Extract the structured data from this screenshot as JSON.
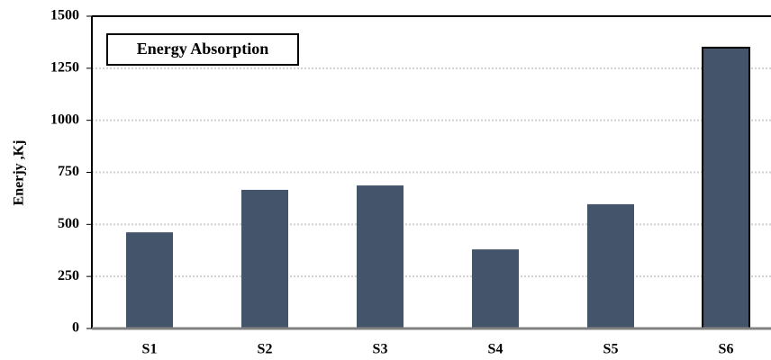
{
  "chart_data": {
    "type": "bar",
    "title": "Energy Absorption",
    "y_label": "Enerjy ,Kj",
    "categories": [
      "S1",
      "S2",
      "S3",
      "S4",
      "S5",
      "S6"
    ],
    "values": [
      462,
      666,
      687,
      380,
      597,
      1349
    ],
    "color": "#44546a",
    "ylim": [
      0,
      1500
    ],
    "yticks": [
      0,
      250,
      500,
      750,
      1000,
      1250,
      1500
    ],
    "grid": true
  }
}
